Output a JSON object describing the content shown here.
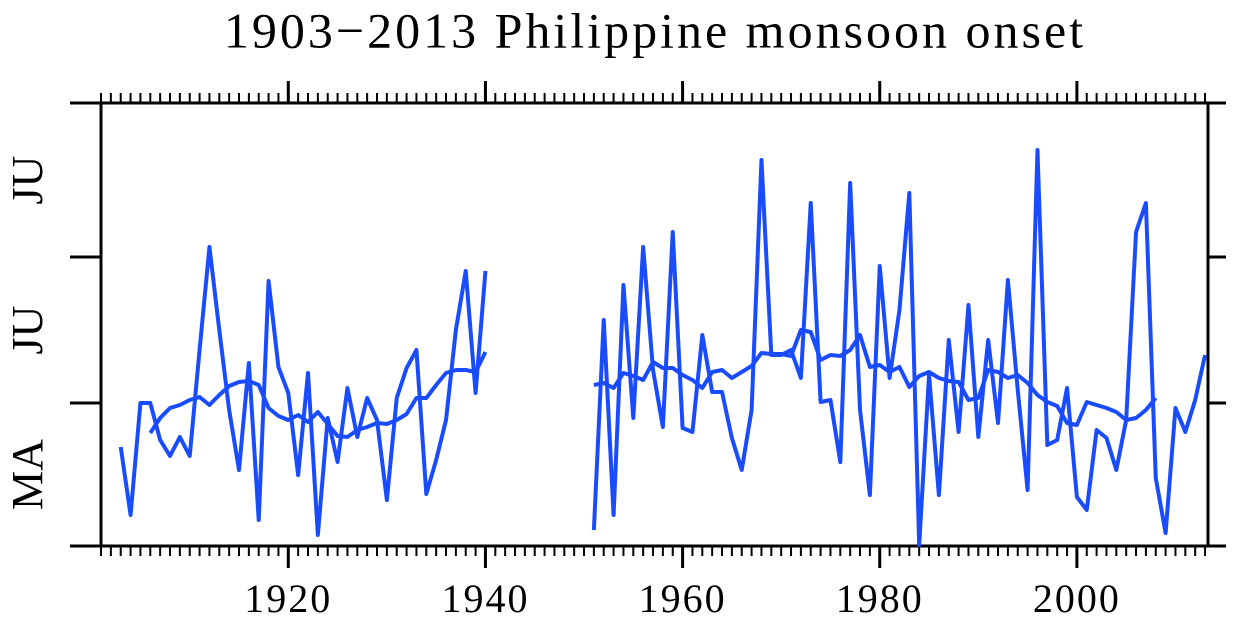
{
  "chart_data": {
    "type": "line",
    "title": "1903−2013 Philippine monsoon onset",
    "x": [
      1903,
      1904,
      1905,
      1906,
      1907,
      1908,
      1909,
      1910,
      1911,
      1912,
      1913,
      1914,
      1915,
      1916,
      1917,
      1918,
      1919,
      1920,
      1921,
      1922,
      1923,
      1924,
      1925,
      1926,
      1927,
      1928,
      1929,
      1930,
      1931,
      1932,
      1933,
      1934,
      1935,
      1936,
      1937,
      1938,
      1939,
      1940,
      1941,
      1942,
      1943,
      1944,
      1945,
      1946,
      1947,
      1948,
      1949,
      1950,
      1951,
      1952,
      1953,
      1954,
      1955,
      1956,
      1957,
      1958,
      1959,
      1960,
      1961,
      1962,
      1963,
      1964,
      1965,
      1966,
      1967,
      1968,
      1969,
      1970,
      1971,
      1972,
      1973,
      1974,
      1975,
      1976,
      1977,
      1978,
      1979,
      1980,
      1981,
      1982,
      1983,
      1984,
      1985,
      1986,
      1987,
      1988,
      1989,
      1990,
      1991,
      1992,
      1993,
      1994,
      1995,
      1996,
      1997,
      1998,
      1999,
      2000,
      2001,
      2002,
      2003,
      2004,
      2005,
      2006,
      2007,
      2008,
      2009,
      2010,
      2011,
      2012,
      2013
    ],
    "series": [
      {
        "color": "#1a4cff",
        "values": [
          99,
          31,
          143,
          143,
          106,
          90,
          109,
          90,
          196,
          299,
          216,
          136,
          76,
          183,
          26,
          265,
          179,
          153,
          71,
          173,
          11,
          128,
          84,
          158,
          109,
          148,
          126,
          46,
          148,
          178,
          196,
          52,
          86,
          126,
          216,
          275,
          153,
          275,
          null,
          null,
          null,
          null,
          null,
          null,
          null,
          null,
          null,
          null,
          16,
          226,
          31,
          261,
          128,
          299,
          176,
          119,
          314,
          118,
          114,
          211,
          154,
          154,
          108,
          76,
          136,
          386,
          191,
          191,
          196,
          168,
          343,
          144,
          146,
          84,
          363,
          136,
          51,
          280,
          168,
          236,
          353,
          1,
          171,
          51,
          206,
          114,
          241,
          109,
          206,
          123,
          266,
          156,
          56,
          396,
          101,
          106,
          158,
          49,
          36,
          116,
          108,
          76,
          126,
          314,
          343,
          68,
          13,
          138,
          114,
          146,
          191
        ]
      },
      {
        "color": "#1a4cff",
        "values": [
          null,
          null,
          null,
          113,
          128,
          138,
          141,
          146,
          149,
          141,
          151,
          160,
          164,
          165,
          161,
          138,
          130,
          126,
          131,
          124,
          134,
          122,
          110,
          109,
          116,
          119,
          123,
          122,
          126,
          132,
          148,
          148,
          161,
          173,
          176,
          176,
          174,
          194,
          null,
          null,
          null,
          null,
          null,
          null,
          null,
          null,
          null,
          null,
          161,
          163,
          158,
          173,
          170,
          166,
          184,
          178,
          178,
          171,
          166,
          158,
          174,
          176,
          168,
          174,
          180,
          193,
          192,
          192,
          190,
          216,
          214,
          186,
          191,
          190,
          196,
          211,
          179,
          181,
          174,
          179,
          159,
          170,
          174,
          168,
          165,
          164,
          146,
          148,
          176,
          174,
          168,
          171,
          163,
          151,
          144,
          140,
          123,
          121,
          144,
          141,
          138,
          134,
          126,
          128,
          136,
          148,
          null,
          null,
          null,
          null,
          null
        ]
      }
    ],
    "xlim": [
      1901,
      2013.3
    ],
    "xticks": [
      1920,
      1940,
      1960,
      1980,
      2000
    ],
    "xminor": 1,
    "ylim": [
      0,
      443
    ],
    "yticks": [
      0,
      143,
      289,
      443
    ],
    "y_band_labels": [
      "MA",
      "JU",
      "JU"
    ]
  }
}
